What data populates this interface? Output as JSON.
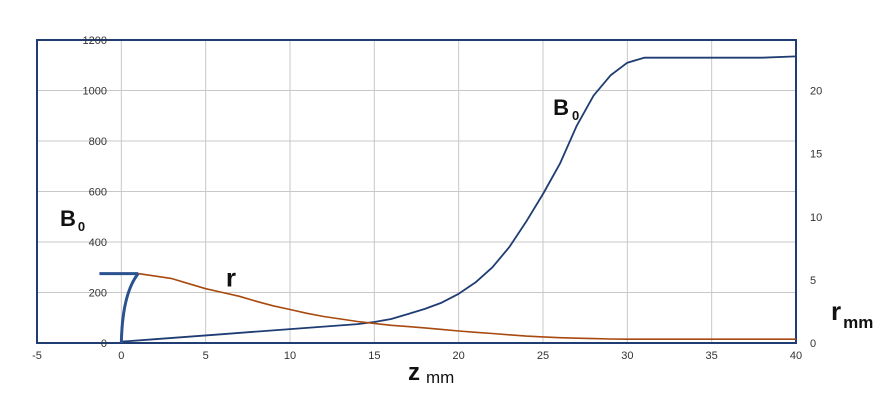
{
  "chart_data": {
    "type": "line",
    "title": "",
    "xlabel": "z",
    "xlabel_sub": "mm",
    "ylabel_left": "B",
    "ylabel_left_sub": "0",
    "ylabel_right": "r",
    "ylabel_right_sub": "mm",
    "xlim": [
      -5,
      40
    ],
    "ylim_left": [
      0,
      1200
    ],
    "ylim_right": [
      0,
      24
    ],
    "x_ticks": [
      "-5",
      "0",
      "5",
      "10",
      "15",
      "20",
      "25",
      "30",
      "35",
      "40"
    ],
    "y_left_ticks": [
      "0",
      "200",
      "400",
      "600",
      "800",
      "1000",
      "1200"
    ],
    "y_right_ticks": [
      "0",
      "5",
      "10",
      "15",
      "20"
    ],
    "grid": true,
    "colors": {
      "B0": "#1f3d73",
      "r": "#a8490f",
      "frame": "#1f3d73",
      "grid": "#c8c8c8"
    },
    "series": [
      {
        "name": "B",
        "name_sub": "0",
        "axis": "left",
        "x": [
          0,
          2,
          4,
          6,
          8,
          10,
          12,
          14,
          15,
          16,
          17,
          18,
          19,
          20,
          21,
          22,
          23,
          24,
          25,
          26,
          27,
          28,
          29,
          30,
          31,
          32,
          34,
          36,
          38,
          40
        ],
        "y": [
          5,
          15,
          25,
          35,
          45,
          55,
          65,
          75,
          83,
          95,
          115,
          135,
          160,
          195,
          240,
          300,
          380,
          480,
          590,
          710,
          860,
          980,
          1060,
          1110,
          1130,
          1130,
          1130,
          1130,
          1130,
          1135
        ]
      },
      {
        "name": "r",
        "axis": "right",
        "x": [
          1,
          2,
          3,
          4,
          5,
          6,
          7,
          8,
          9,
          10,
          11,
          12,
          13,
          14,
          15,
          16,
          17,
          18,
          19,
          20,
          21,
          22,
          23,
          24,
          25,
          26,
          27,
          28,
          29,
          30,
          32,
          35,
          38,
          40
        ],
        "y": [
          5.5,
          5.3,
          5.1,
          4.7,
          4.3,
          4.0,
          3.7,
          3.3,
          2.95,
          2.65,
          2.35,
          2.1,
          1.9,
          1.7,
          1.55,
          1.4,
          1.3,
          1.2,
          1.08,
          0.95,
          0.85,
          0.75,
          0.65,
          0.55,
          0.48,
          0.42,
          0.38,
          0.35,
          0.32,
          0.3,
          0.3,
          0.3,
          0.3,
          0.3
        ]
      }
    ],
    "annotations": [
      {
        "text": "B",
        "sub": "0",
        "x": 25.6,
        "y": 935,
        "axis": "left"
      },
      {
        "text": "r",
        "x": 6.2,
        "y": 5.1,
        "axis": "right"
      }
    ]
  }
}
